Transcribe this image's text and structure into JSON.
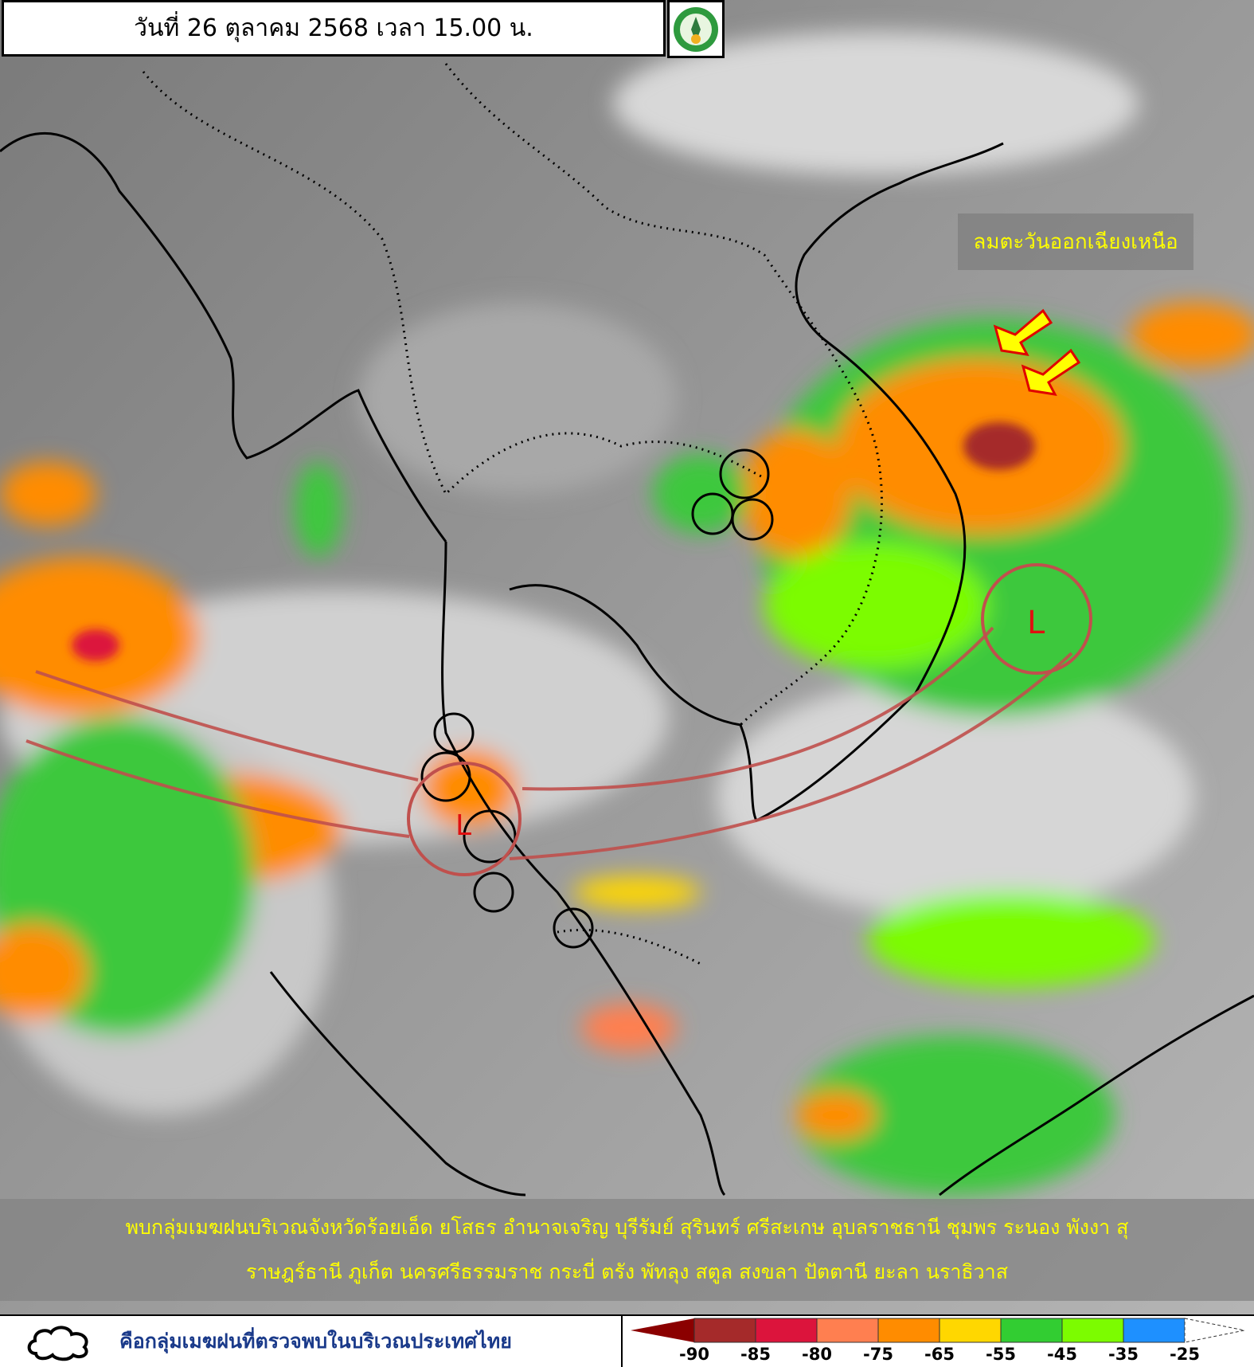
{
  "header": {
    "title": "วันที่ 26 ตุลาคม 2568 เวลา 15.00 น.",
    "logo": "meteorological-department-logo"
  },
  "annotations": {
    "wind_label": "ลมตะวันออกเฉียงเหนือ",
    "low_pressure_marker": "L",
    "arrow_color": "#ffff00",
    "trough_color": "#c0504d"
  },
  "caption": {
    "line1": "พบกลุ่มเมฆฝนบริเวณจังหวัดร้อยเอ็ด ยโสธร อำนาจเจริญ บุรีรัมย์ สุรินทร์ ศรีสะเกษ อุบลราชธานี ชุมพร ระนอง พังงา สุ",
    "line2": "ราษฎร์ธานี ภูเก็ต นครศรีธรรมราช กระบี่ ตรัง พัทลุง สตูล สงขลา ปัตตานี ยะลา นราธิวาส"
  },
  "legend": {
    "cloud_symbol_text": "คือกลุ่มเมฆฝนที่ตรวจพบในบริเวณประเทศไทย",
    "colorbar": {
      "colors": [
        "#8b0000",
        "#a52a2a",
        "#dc143c",
        "#ff7f50",
        "#ff8c00",
        "#ffd700",
        "#32cd32",
        "#7cfc00",
        "#1e90ff",
        "#ffffff"
      ],
      "ticks": [
        "-90",
        "-85",
        "-80",
        "-75",
        "-65",
        "-55",
        "-45",
        "-35",
        "-25"
      ]
    }
  }
}
